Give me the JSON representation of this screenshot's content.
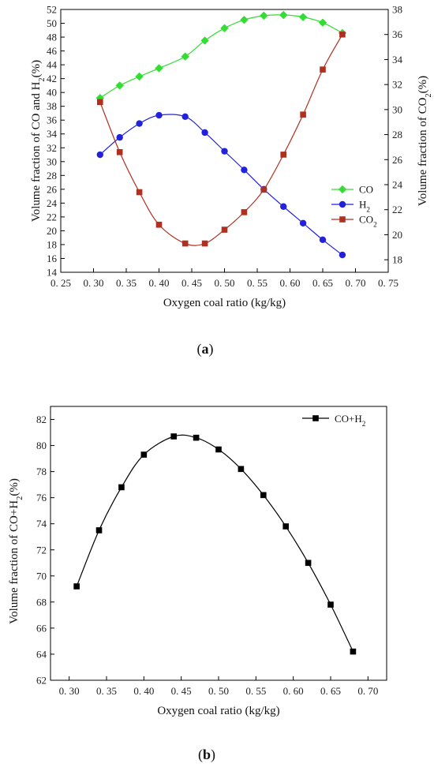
{
  "chart_data": [
    {
      "id": "a",
      "type": "line",
      "caption": "(a)",
      "caption_parts": [
        "(",
        "a",
        ")"
      ],
      "xlabel": "Oxygen coal ratio (kg/kg)",
      "ylabel_left": [
        "Volume fraction of CO and H",
        "2",
        "(%)"
      ],
      "ylabel_right": [
        "Volume fraction of CO",
        "2",
        "(%)"
      ],
      "xlim": [
        0.25,
        0.75
      ],
      "xticks": [
        "0. 25",
        "0. 30",
        "0. 35",
        "0. 40",
        "0. 45",
        "0. 50",
        "0. 55",
        "0. 60",
        "0. 65",
        "0. 70",
        "0. 75"
      ],
      "ylim_left": [
        14,
        52
      ],
      "yticks_left": [
        "14",
        "16",
        "18",
        "20",
        "22",
        "24",
        "26",
        "28",
        "30",
        "32",
        "34",
        "36",
        "38",
        "40",
        "42",
        "44",
        "46",
        "48",
        "50",
        "52"
      ],
      "ylim_right": [
        17,
        38
      ],
      "yticks_right": [
        "18",
        "20",
        "22",
        "24",
        "26",
        "28",
        "30",
        "32",
        "34",
        "36",
        "38"
      ],
      "legend_position": "right",
      "x": [
        0.31,
        0.34,
        0.37,
        0.4,
        0.44,
        0.47,
        0.5,
        0.53,
        0.56,
        0.59,
        0.62,
        0.65,
        0.68
      ],
      "series": [
        {
          "name": [
            "CO",
            "",
            ""
          ],
          "axis": "left",
          "color": "#33dd33",
          "marker": "diamond",
          "values": [
            39.2,
            41.0,
            42.3,
            43.5,
            45.2,
            47.5,
            49.3,
            50.5,
            51.1,
            51.2,
            50.9,
            50.1,
            48.6
          ]
        },
        {
          "name": [
            "H",
            "2",
            ""
          ],
          "axis": "left",
          "color": "#2222dd",
          "marker": "circle",
          "values": [
            31.0,
            33.5,
            35.5,
            36.7,
            36.5,
            34.2,
            31.5,
            28.8,
            26.0,
            23.5,
            21.1,
            18.7,
            16.5
          ]
        },
        {
          "name": [
            "CO",
            "2",
            ""
          ],
          "axis": "right",
          "color": "#b03020",
          "marker": "square",
          "values": [
            30.6,
            26.6,
            23.4,
            20.8,
            19.3,
            19.3,
            20.4,
            21.8,
            23.6,
            26.4,
            29.6,
            33.2,
            36.0
          ]
        }
      ]
    },
    {
      "id": "b",
      "type": "line",
      "caption": "(b)",
      "caption_parts": [
        "(",
        "b",
        ")"
      ],
      "xlabel": "Oxygen coal ratio (kg/kg)",
      "ylabel": [
        "Volume fraction of CO+H",
        "2",
        "(%)"
      ],
      "xlim": [
        0.275,
        0.725
      ],
      "xticks": [
        "0. 30",
        "0. 35",
        "0. 40",
        "0. 45",
        "0. 50",
        "0. 55",
        "0. 60",
        "0. 65",
        "0. 70"
      ],
      "ylim": [
        62,
        83
      ],
      "yticks": [
        "62",
        "64",
        "66",
        "68",
        "70",
        "72",
        "74",
        "76",
        "78",
        "80",
        "82"
      ],
      "legend_position": "top-right",
      "x": [
        0.31,
        0.34,
        0.37,
        0.4,
        0.44,
        0.47,
        0.5,
        0.53,
        0.56,
        0.59,
        0.62,
        0.65,
        0.68
      ],
      "series": [
        {
          "name": [
            "CO+H",
            "2",
            ""
          ],
          "color": "#000000",
          "marker": "square",
          "values": [
            69.2,
            73.5,
            76.8,
            79.3,
            80.7,
            80.6,
            79.7,
            78.2,
            76.2,
            73.8,
            71.0,
            67.8,
            64.2
          ]
        }
      ]
    }
  ]
}
